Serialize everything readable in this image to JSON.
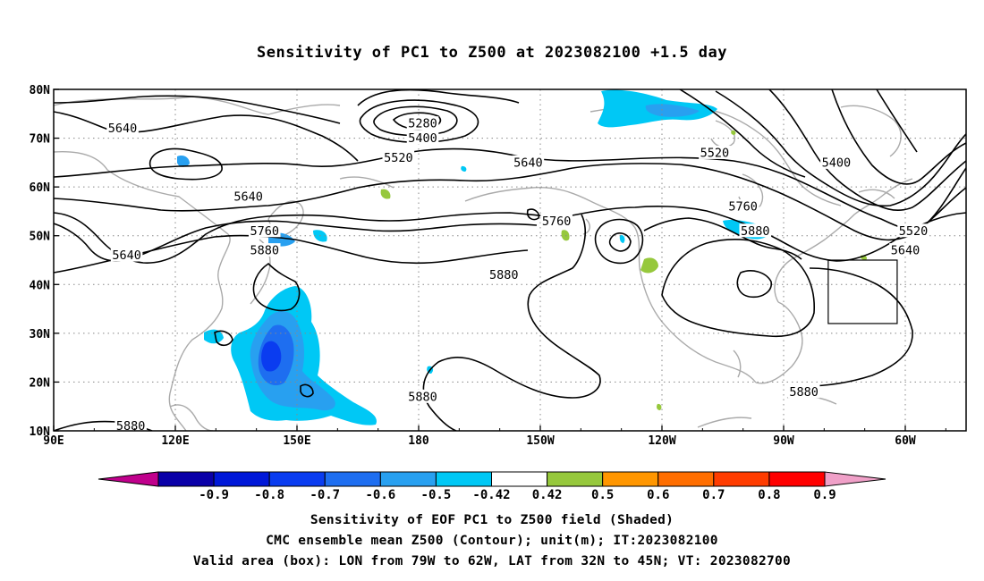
{
  "title": "Sensitivity of PC1 to Z500 at 2023082100 +1.5 day",
  "captions": [
    "Sensitivity of EOF PC1 to Z500 field (Shaded)",
    "CMC ensemble mean Z500 (Contour); unit(m); IT:2023082100",
    "Valid area (box): LON from 79W to 62W, LAT from 32N to 45N; VT: 2023082700"
  ],
  "axes": {
    "lon_range": [
      90,
      315
    ],
    "lat_range": [
      10,
      80
    ],
    "lon_ticks": [
      {
        "lon": 90,
        "label": "90E"
      },
      {
        "lon": 120,
        "label": "120E"
      },
      {
        "lon": 150,
        "label": "150E"
      },
      {
        "lon": 180,
        "label": "180"
      },
      {
        "lon": 210,
        "label": "150W"
      },
      {
        "lon": 240,
        "label": "120W"
      },
      {
        "lon": 270,
        "label": "90W"
      },
      {
        "lon": 300,
        "label": "60W"
      }
    ],
    "lat_ticks": [
      {
        "lat": 10,
        "label": "10N"
      },
      {
        "lat": 20,
        "label": "20N"
      },
      {
        "lat": 30,
        "label": "30N"
      },
      {
        "lat": 40,
        "label": "40N"
      },
      {
        "lat": 50,
        "label": "50N"
      },
      {
        "lat": 60,
        "label": "60N"
      },
      {
        "lat": 70,
        "label": "70N"
      },
      {
        "lat": 80,
        "label": "80N"
      }
    ],
    "grid": true
  },
  "valid_box": {
    "lon_min": 281,
    "lon_max": 298,
    "lat_min": 32,
    "lat_max": 45
  },
  "colorbar": {
    "labels": [
      "-0.9",
      "-0.8",
      "-0.7",
      "-0.6",
      "-0.5",
      "-0.42",
      "0.42",
      "0.5",
      "0.6",
      "0.7",
      "0.8",
      "0.9"
    ],
    "colors": [
      "#0a00a8",
      "#0018d8",
      "#0a3cf0",
      "#1e6ef0",
      "#28a0f0",
      "#00c8f5",
      "#ffffff",
      "#96c83c",
      "#ff9600",
      "#ff6e00",
      "#ff3c00",
      "#ff0000"
    ],
    "left_triangle": "#c0008c",
    "right_triangle": "#f0a0c8"
  },
  "contour_labels": [
    {
      "text": "5640",
      "lon": 107,
      "lat": 72
    },
    {
      "text": "5280",
      "lon": 181,
      "lat": 73
    },
    {
      "text": "5400",
      "lon": 181,
      "lat": 70
    },
    {
      "text": "5520",
      "lon": 175,
      "lat": 66
    },
    {
      "text": "5640",
      "lon": 207,
      "lat": 65
    },
    {
      "text": "5520",
      "lon": 253,
      "lat": 67
    },
    {
      "text": "5400",
      "lon": 283,
      "lat": 65
    },
    {
      "text": "5640",
      "lon": 138,
      "lat": 58
    },
    {
      "text": "5760",
      "lon": 214,
      "lat": 53
    },
    {
      "text": "5760",
      "lon": 260,
      "lat": 56
    },
    {
      "text": "5520",
      "lon": 302,
      "lat": 51
    },
    {
      "text": "5760",
      "lon": 142,
      "lat": 51
    },
    {
      "text": "5880",
      "lon": 263,
      "lat": 51
    },
    {
      "text": "5640",
      "lon": 300,
      "lat": 47
    },
    {
      "text": "5640",
      "lon": 108,
      "lat": 46
    },
    {
      "text": "5880",
      "lon": 142,
      "lat": 47
    },
    {
      "text": "5880",
      "lon": 201,
      "lat": 42
    },
    {
      "text": "5880",
      "lon": 181,
      "lat": 17
    },
    {
      "text": "5880",
      "lon": 275,
      "lat": 18
    },
    {
      "text": "5880",
      "lon": 109,
      "lat": 11
    }
  ]
}
